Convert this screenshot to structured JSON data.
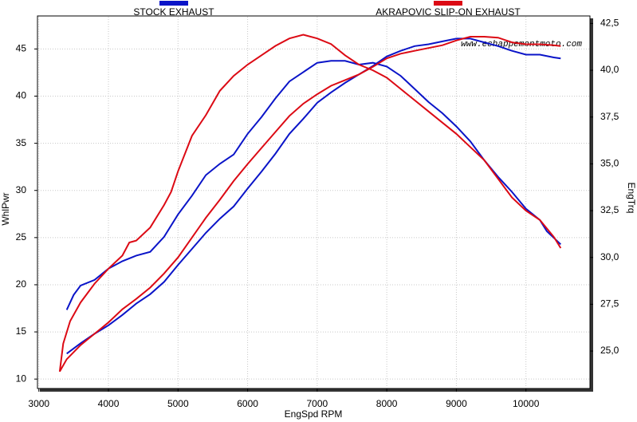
{
  "chart_data": {
    "type": "line",
    "annotation": "www.echappementmoto.com",
    "x_label": "EngSpd  RPM",
    "y_label": "WhlPwr",
    "y2_label": "EngTrq",
    "xlim": [
      2980,
      10920
    ],
    "ylim": [
      9,
      48.5
    ],
    "y2lim": [
      23,
      42.9
    ],
    "xticks": [
      3000,
      4000,
      5000,
      6000,
      7000,
      8000,
      9000,
      10000
    ],
    "yticks": [
      10,
      15,
      20,
      25,
      30,
      35,
      40,
      45
    ],
    "y2ticks": [
      {
        "value": 25.0,
        "label": "25,0"
      },
      {
        "value": 27.5,
        "label": "27,5"
      },
      {
        "value": 30.0,
        "label": "30,0"
      },
      {
        "value": 32.5,
        "label": "32,5"
      },
      {
        "value": 35.0,
        "label": "35,0"
      },
      {
        "value": 37.5,
        "label": "37,5"
      },
      {
        "value": 40.0,
        "label": "40,0"
      },
      {
        "value": 42.5,
        "label": "42,5"
      }
    ],
    "grid": true,
    "series": [
      {
        "name": "STOCK EXHAUST",
        "color": "#0a14c8",
        "lines": [
          {
            "x": [
              3400,
              3600,
              3800,
              4000,
              4200,
              4400,
              4600,
              4800,
              5000,
              5200,
              5400,
              5600,
              5800,
              6000,
              6200,
              6400,
              6600,
              6800,
              7000,
              7200,
              7400,
              7600,
              7800,
              8000,
              8200,
              8400,
              8600,
              8800,
              9000,
              9200,
              9400,
              9600,
              9800,
              10000,
              10200,
              10400,
              10500
            ],
            "values": [
              12.7,
              13.8,
              14.8,
              15.7,
              16.8,
              18.0,
              19.0,
              20.3,
              22.1,
              23.8,
              25.5,
              27.0,
              28.3,
              30.2,
              32.0,
              33.9,
              36.0,
              37.6,
              39.3,
              40.4,
              41.4,
              42.3,
              43.2,
              44.2,
              44.8,
              45.3,
              45.5,
              45.8,
              46.1,
              46.1,
              45.7,
              45.3,
              44.8,
              44.4,
              44.4,
              44.1,
              44.0
            ]
          },
          {
            "axis": "y2",
            "x": [
              3400,
              3500,
              3600,
              3800,
              4000,
              4200,
              4400,
              4600,
              4800,
              5000,
              5200,
              5400,
              5600,
              5800,
              6000,
              6200,
              6400,
              6600,
              6800,
              7000,
              7200,
              7400,
              7600,
              7800,
              8000,
              8200,
              8400,
              8600,
              8800,
              9000,
              9200,
              9400,
              9600,
              9800,
              10000,
              10200,
              10300,
              10500
            ],
            "values": [
              27.2,
              28.0,
              28.5,
              28.8,
              29.4,
              29.8,
              30.1,
              30.3,
              31.1,
              32.3,
              33.3,
              34.4,
              35.0,
              35.5,
              36.6,
              37.5,
              38.5,
              39.4,
              39.9,
              40.4,
              40.5,
              40.5,
              40.3,
              40.4,
              40.2,
              39.7,
              39.0,
              38.3,
              37.7,
              37.0,
              36.2,
              35.2,
              34.3,
              33.5,
              32.6,
              32.0,
              31.4,
              30.7
            ]
          }
        ]
      },
      {
        "name": "AKRAPOVIC SLIP-ON EXHAUST",
        "color": "#dc0a14",
        "lines": [
          {
            "x": [
              3300,
              3400,
              3600,
              3800,
              4000,
              4200,
              4400,
              4600,
              4800,
              5000,
              5200,
              5400,
              5600,
              5800,
              6000,
              6200,
              6400,
              6600,
              6800,
              7000,
              7200,
              7400,
              7600,
              7800,
              8000,
              8200,
              8400,
              8600,
              8800,
              9000,
              9200,
              9400,
              9600,
              9800,
              10000,
              10200,
              10400,
              10500
            ],
            "values": [
              10.8,
              12.1,
              13.6,
              14.8,
              16.0,
              17.4,
              18.5,
              19.7,
              21.2,
              22.9,
              25.0,
              27.1,
              29.0,
              31.0,
              32.8,
              34.5,
              36.2,
              37.9,
              39.2,
              40.2,
              41.1,
              41.7,
              42.3,
              43.1,
              44.0,
              44.5,
              44.8,
              45.1,
              45.4,
              45.9,
              46.3,
              46.3,
              46.2,
              45.7,
              45.5,
              45.5,
              45.4,
              45.3
            ]
          },
          {
            "axis": "y2",
            "x": [
              3300,
              3350,
              3450,
              3600,
              3800,
              4000,
              4200,
              4300,
              4400,
              4600,
              4800,
              4900,
              5000,
              5200,
              5400,
              5600,
              5800,
              6000,
              6200,
              6400,
              6600,
              6800,
              7000,
              7200,
              7400,
              7600,
              7800,
              8000,
              8200,
              8400,
              8600,
              8800,
              9000,
              9200,
              9400,
              9600,
              9800,
              10000,
              10200,
              10400,
              10500
            ],
            "values": [
              23.9,
              25.4,
              26.6,
              27.6,
              28.6,
              29.4,
              30.1,
              30.8,
              30.9,
              31.6,
              32.8,
              33.5,
              34.6,
              36.5,
              37.6,
              38.9,
              39.7,
              40.3,
              40.8,
              41.3,
              41.7,
              41.9,
              41.7,
              41.4,
              40.8,
              40.3,
              40.0,
              39.6,
              39.0,
              38.4,
              37.8,
              37.2,
              36.6,
              35.9,
              35.2,
              34.2,
              33.2,
              32.5,
              32.0,
              31.1,
              30.5
            ]
          }
        ]
      }
    ]
  }
}
